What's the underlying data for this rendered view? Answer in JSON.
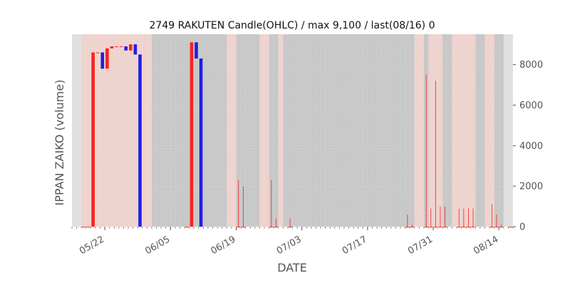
{
  "chart_data": {
    "type": "candlestick",
    "title": "2749 RAKUTEN Candle(OHLC) / max 9,100 / last(08/16) 0",
    "xlabel": "DATE",
    "ylabel": "IPPAN ZAIKO (volume)",
    "y_axis_side": "right",
    "ylim": [
      0,
      9500
    ],
    "yticks": [
      0,
      2000,
      4000,
      6000,
      8000
    ],
    "ytick_labels": [
      "0",
      "2000",
      "4000",
      "6000",
      "8000"
    ],
    "x_range": [
      "2025-05-15",
      "2025-08-17"
    ],
    "xtick_dates": [
      "2025-05-22",
      "2025-06-05",
      "2025-06-19",
      "2025-07-03",
      "2025-07-17",
      "2025-07-31",
      "2025-08-14"
    ],
    "xtick_labels": [
      "05/22",
      "06/05",
      "06/19",
      "07/03",
      "07/17",
      "07/31",
      "08/14"
    ],
    "grid": true,
    "background_color": "#c8c8c8",
    "weekend_shade_color": "#e0e0e0",
    "highlight_color": "#f5d5cf",
    "up_color": "#ff2020",
    "down_color": "#2020e0",
    "highlight_ranges": [
      [
        "2025-05-17",
        "2025-06-01"
      ],
      [
        "2025-06-17",
        "2025-06-19"
      ],
      [
        "2025-06-24",
        "2025-06-26"
      ],
      [
        "2025-06-28",
        "2025-06-29"
      ],
      [
        "2025-07-27",
        "2025-07-29"
      ],
      [
        "2025-07-30",
        "2025-08-02"
      ],
      [
        "2025-08-04",
        "2025-08-09"
      ],
      [
        "2025-08-11",
        "2025-08-13"
      ]
    ],
    "weekend_ranges": [
      [
        "2025-05-15",
        "2025-05-17"
      ],
      [
        "2025-08-15",
        "2025-08-17"
      ]
    ],
    "candles": [
      {
        "date": "2025-05-17",
        "open": 0,
        "high": 0,
        "low": 0,
        "close": 0
      },
      {
        "date": "2025-05-18",
        "open": 0,
        "high": 0,
        "low": 0,
        "close": 0
      },
      {
        "date": "2025-05-19",
        "open": 0,
        "high": 8600,
        "low": 0,
        "close": 8600
      },
      {
        "date": "2025-05-20",
        "open": 8600,
        "high": 8600,
        "low": 8600,
        "close": 8600
      },
      {
        "date": "2025-05-21",
        "open": 8600,
        "high": 8600,
        "low": 7800,
        "close": 7800
      },
      {
        "date": "2025-05-22",
        "open": 7800,
        "high": 8800,
        "low": 7800,
        "close": 8800
      },
      {
        "date": "2025-05-23",
        "open": 8800,
        "high": 8900,
        "low": 8800,
        "close": 8900
      },
      {
        "date": "2025-05-24",
        "open": 8900,
        "high": 8900,
        "low": 8900,
        "close": 8900
      },
      {
        "date": "2025-05-25",
        "open": 8900,
        "high": 8900,
        "low": 8900,
        "close": 8900
      },
      {
        "date": "2025-05-26",
        "open": 8900,
        "high": 8900,
        "low": 8700,
        "close": 8700
      },
      {
        "date": "2025-05-27",
        "open": 8700,
        "high": 9000,
        "low": 8700,
        "close": 9000
      },
      {
        "date": "2025-05-28",
        "open": 9000,
        "high": 9000,
        "low": 8500,
        "close": 8500
      },
      {
        "date": "2025-05-29",
        "open": 8500,
        "high": 8500,
        "low": 0,
        "close": 0
      },
      {
        "date": "2025-06-08",
        "open": 0,
        "high": 0,
        "low": 0,
        "close": 0
      },
      {
        "date": "2025-06-09",
        "open": 0,
        "high": 9100,
        "low": 0,
        "close": 9100
      },
      {
        "date": "2025-06-10",
        "open": 9100,
        "high": 9100,
        "low": 8300,
        "close": 8300
      },
      {
        "date": "2025-06-11",
        "open": 8300,
        "high": 8300,
        "low": 0,
        "close": 0
      },
      {
        "date": "2025-06-19",
        "open": 0,
        "high": 2300,
        "low": 0,
        "close": 0
      },
      {
        "date": "2025-06-20",
        "open": 0,
        "high": 2000,
        "low": 0,
        "close": 0
      },
      {
        "date": "2025-06-26",
        "open": 0,
        "high": 2300,
        "low": 0,
        "close": 0
      },
      {
        "date": "2025-06-27",
        "open": 0,
        "high": 400,
        "low": 0,
        "close": 0
      },
      {
        "date": "2025-06-30",
        "open": 0,
        "high": 400,
        "low": 0,
        "close": 0
      },
      {
        "date": "2025-07-25",
        "open": 0,
        "high": 600,
        "low": 0,
        "close": 0
      },
      {
        "date": "2025-07-26",
        "open": 0,
        "high": 100,
        "low": 0,
        "close": 0
      },
      {
        "date": "2025-07-29",
        "open": 0,
        "high": 7500,
        "low": 0,
        "close": 0
      },
      {
        "date": "2025-07-30",
        "open": 0,
        "high": 900,
        "low": 0,
        "close": 0
      },
      {
        "date": "2025-07-31",
        "open": 0,
        "high": 7200,
        "low": 0,
        "close": 0
      },
      {
        "date": "2025-08-01",
        "open": 0,
        "high": 1000,
        "low": 0,
        "close": 0
      },
      {
        "date": "2025-08-02",
        "open": 0,
        "high": 1000,
        "low": 0,
        "close": 0
      },
      {
        "date": "2025-08-05",
        "open": 0,
        "high": 900,
        "low": 0,
        "close": 0
      },
      {
        "date": "2025-08-06",
        "open": 0,
        "high": 900,
        "low": 0,
        "close": 0
      },
      {
        "date": "2025-08-07",
        "open": 0,
        "high": 900,
        "low": 0,
        "close": 0
      },
      {
        "date": "2025-08-08",
        "open": 0,
        "high": 900,
        "low": 0,
        "close": 0
      },
      {
        "date": "2025-08-12",
        "open": 0,
        "high": 1100,
        "low": 0,
        "close": 0
      },
      {
        "date": "2025-08-13",
        "open": 0,
        "high": 600,
        "low": 0,
        "close": 0
      },
      {
        "date": "2025-08-14",
        "open": 0,
        "high": 100,
        "low": 0,
        "close": 0
      },
      {
        "date": "2025-08-16",
        "open": 0,
        "high": 0,
        "low": 0,
        "close": 0
      }
    ]
  }
}
